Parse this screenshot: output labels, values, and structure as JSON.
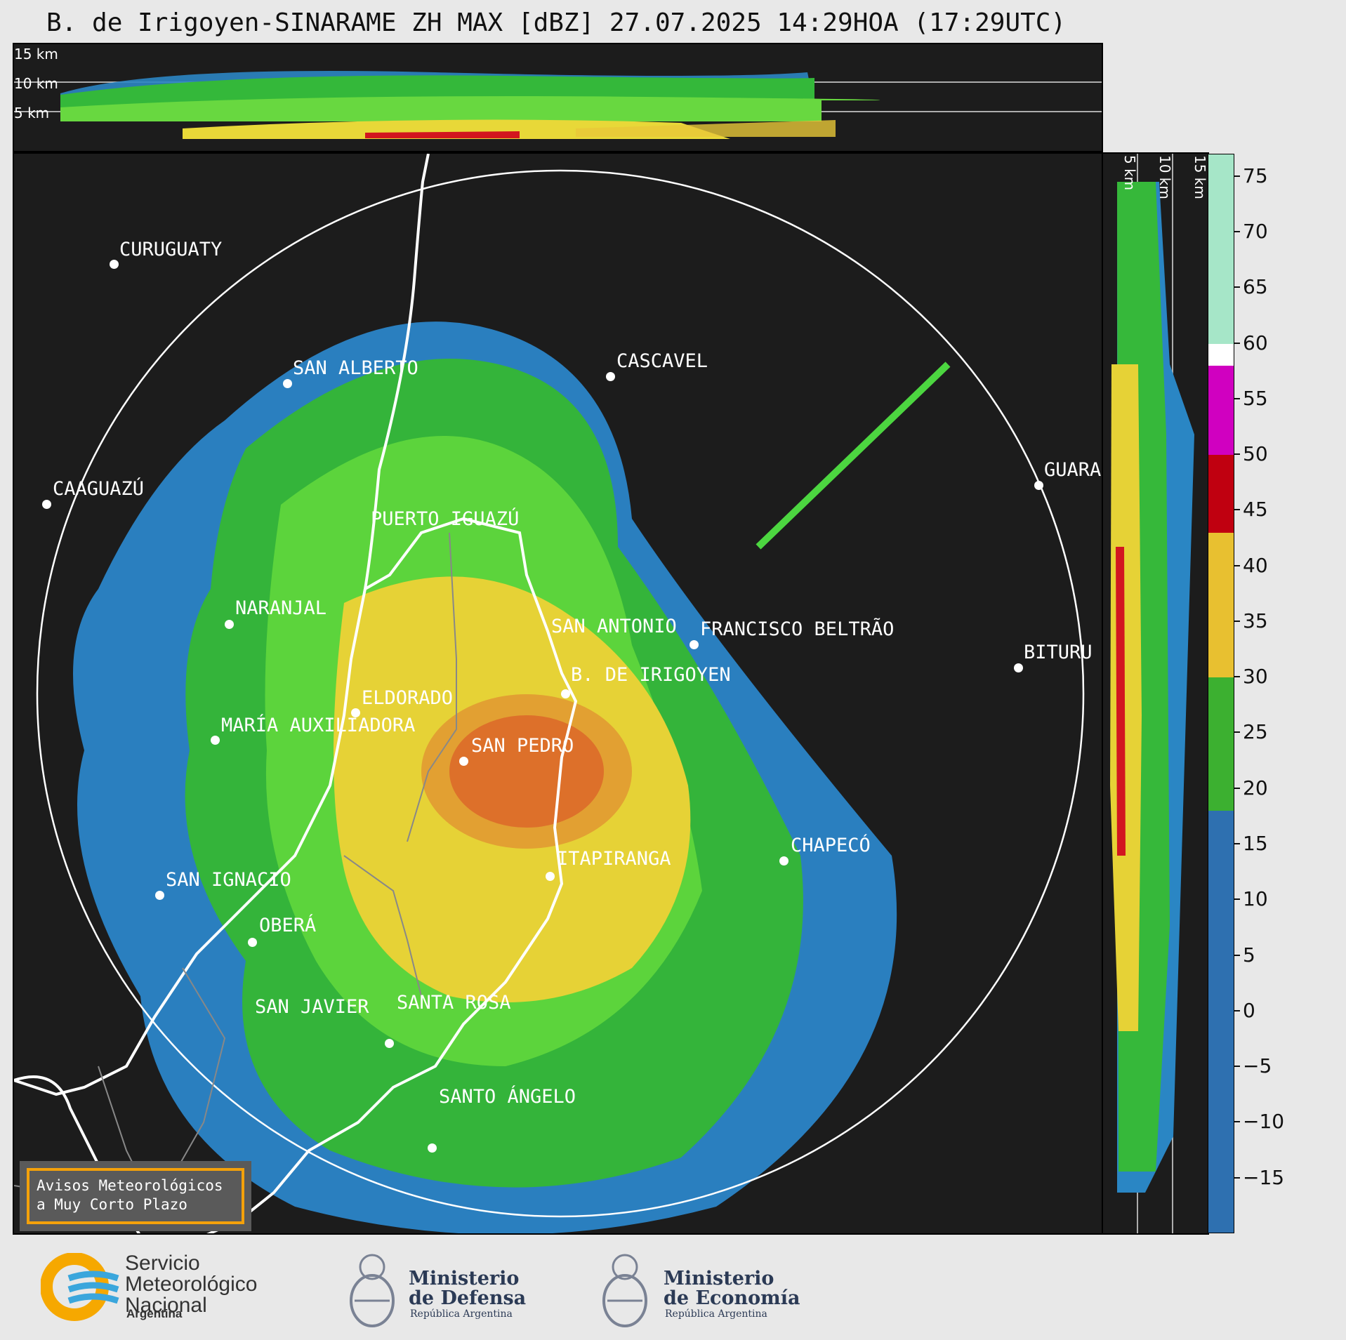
{
  "title": "B. de Irigoyen-SINARAME ZH MAX [dBZ] 27.07.2025 14:29HOA (17:29UTC)",
  "top_panel": {
    "height_labels": [
      "15 km",
      "10 km",
      "5 km"
    ]
  },
  "side_panel": {
    "height_labels": [
      "5 km",
      "10 km",
      "15 km"
    ]
  },
  "cities": [
    {
      "name": "CURUGUATY"
    },
    {
      "name": "SAN ALBERTO"
    },
    {
      "name": "CASCAVEL"
    },
    {
      "name": "CAAGUAZÚ"
    },
    {
      "name": "GUARA"
    },
    {
      "name": "PUERTO IGUAZÚ"
    },
    {
      "name": "NARANJAL"
    },
    {
      "name": "SAN ANTONIO"
    },
    {
      "name": "FRANCISCO BELTRÃO"
    },
    {
      "name": "BITURU"
    },
    {
      "name": "B. DE IRIGOYEN"
    },
    {
      "name": "ELDORADO"
    },
    {
      "name": "MARÍA AUXILIADORA"
    },
    {
      "name": "SAN PEDRO"
    },
    {
      "name": "CHAPECÓ"
    },
    {
      "name": "ITAPIRANGA"
    },
    {
      "name": "SAN IGNACIO"
    },
    {
      "name": "OBERÁ"
    },
    {
      "name": "SAN JAVIER"
    },
    {
      "name": "SANTA ROSA"
    },
    {
      "name": "SANTO ÁNGELO"
    }
  ],
  "colorbar": {
    "unit": "dBZ",
    "ticks": [
      "75",
      "70",
      "65",
      "60",
      "55",
      "50",
      "45",
      "40",
      "35",
      "30",
      "25",
      "20",
      "15",
      "10",
      "5",
      "0",
      "−5",
      "−10",
      "−15"
    ],
    "range": [
      -20,
      77
    ],
    "bands": [
      {
        "from": 60,
        "to": 77,
        "color": "#a6e6c8"
      },
      {
        "from": 58,
        "to": 60,
        "color": "#ffffff"
      },
      {
        "from": 50,
        "to": 58,
        "color": "#d000c0"
      },
      {
        "from": 43,
        "to": 50,
        "color": "#c00010"
      },
      {
        "from": 30,
        "to": 43,
        "color": "#e8c030"
      },
      {
        "from": 18,
        "to": 30,
        "color": "#3cb030"
      },
      {
        "from": -20,
        "to": 18,
        "color": "#2e70b0"
      }
    ]
  },
  "notice": {
    "line1": "Avisos Meteorológicos",
    "line2": "a Muy Corto Plazo"
  },
  "footer": {
    "smn": {
      "line1": "Servicio",
      "line2": "Meteorológico",
      "line3": "Nacional",
      "country": "Argentina"
    },
    "defensa": {
      "line1": "Ministerio",
      "line2": "de Defensa",
      "sub": "República Argentina"
    },
    "economia": {
      "line1": "Ministerio",
      "line2": "de Economía",
      "sub": "República Argentina"
    }
  }
}
